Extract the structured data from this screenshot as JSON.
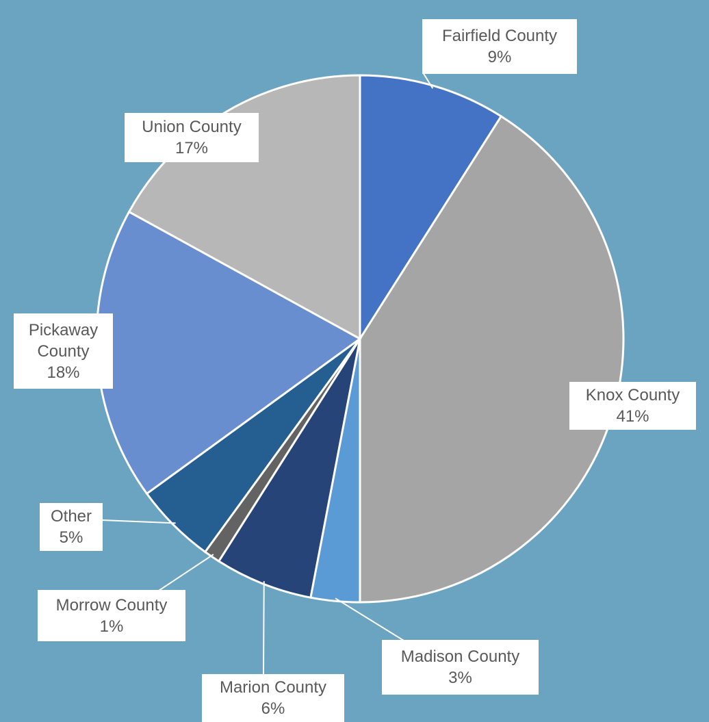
{
  "chart_data": {
    "type": "pie",
    "categories": [
      "Fairfield County",
      "Knox County",
      "Madison County",
      "Marion County",
      "Morrow County",
      "Other",
      "Pickaway County",
      "Union County"
    ],
    "values": [
      9,
      41,
      3,
      6,
      1,
      5,
      18,
      17
    ],
    "value_labels": [
      "9%",
      "41%",
      "3%",
      "6%",
      "1%",
      "5%",
      "18%",
      "17%"
    ],
    "colors": [
      "#4472c4",
      "#a5a5a5",
      "#5b9bd5",
      "#264478",
      "#636363",
      "#255e91",
      "#698ed0",
      "#b7b7b7"
    ]
  }
}
